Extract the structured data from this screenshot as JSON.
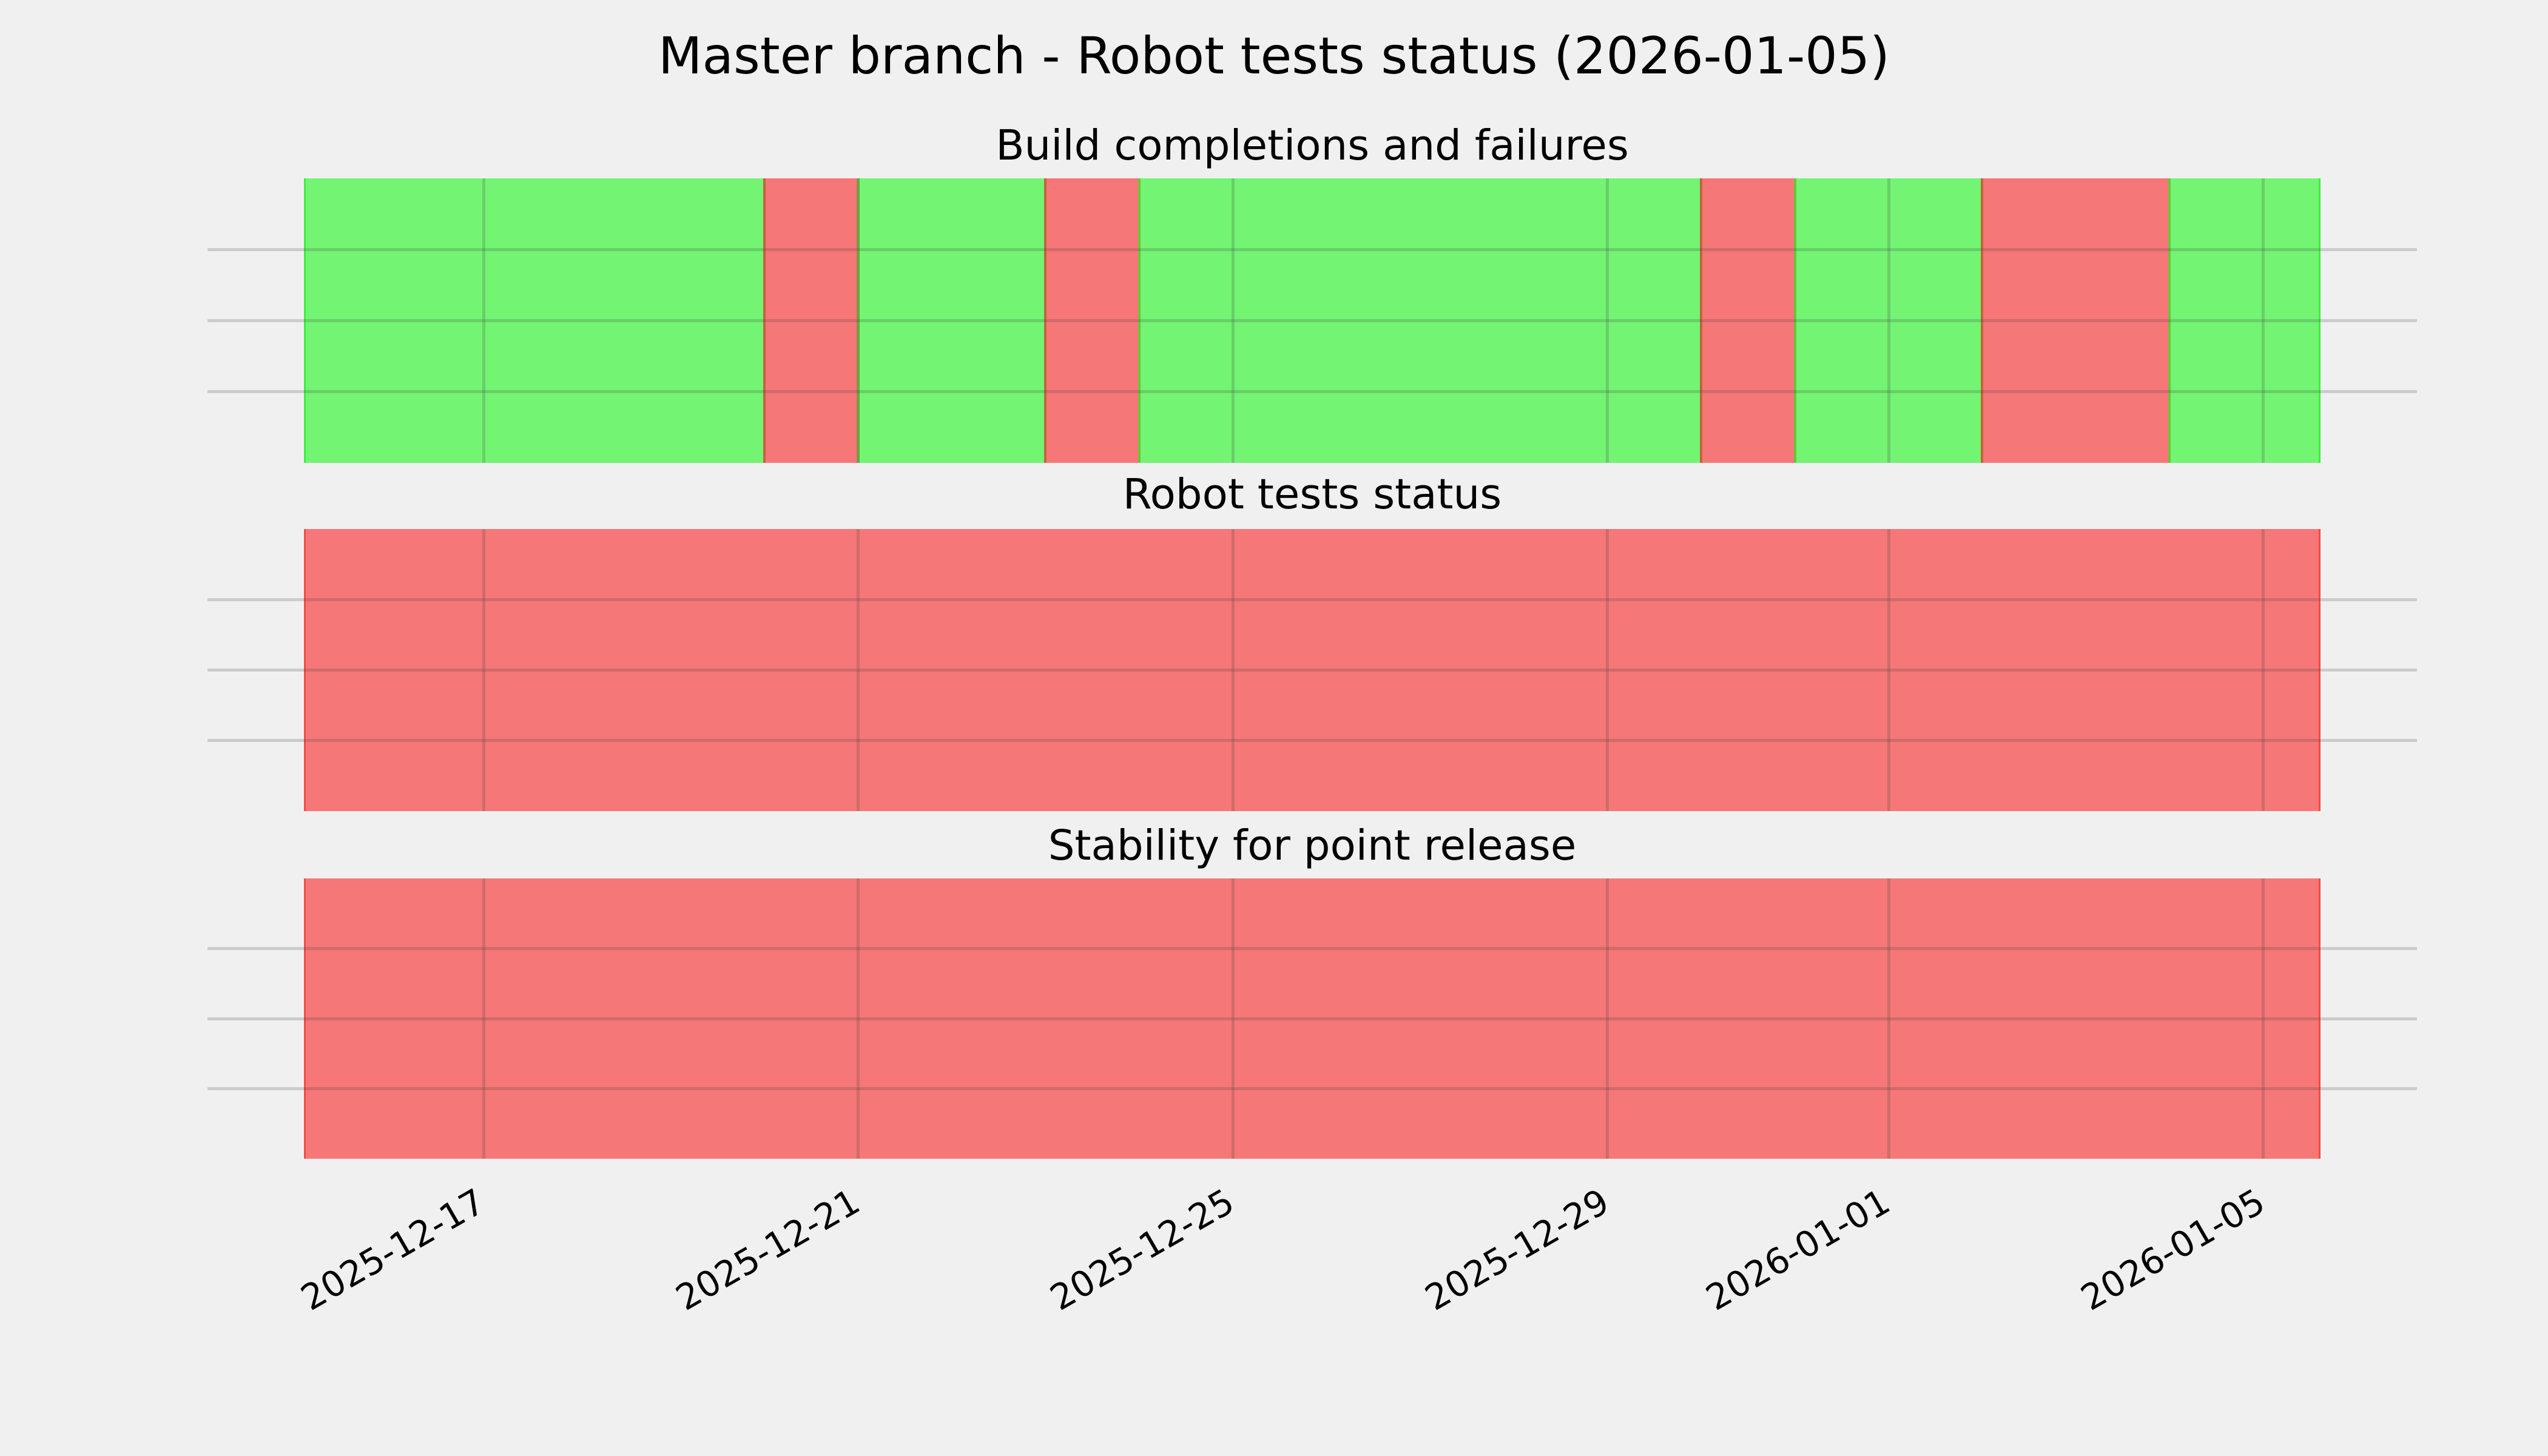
{
  "figure": {
    "title": "Master branch - Robot tests status (2026-01-05)",
    "background": "#f0f0f0"
  },
  "colors": {
    "pass": "#73f473",
    "fail": "#f57777",
    "gridline": "rgba(60,60,60,0.2)",
    "seam_pass_to_fail": "#c4643a",
    "seam_fail_to_pass": "#6ac43a",
    "edge_pass": "#3cf03c",
    "edge_fail": "#fa4a42",
    "text": "#000000"
  },
  "x_axis": {
    "epoch": "2025-12-15T00:00",
    "ticks": [
      "2025-12-17",
      "2025-12-21",
      "2025-12-25",
      "2025-12-29",
      "2026-01-01",
      "2026-01-05"
    ]
  },
  "chart_data": {
    "type": "timeline-status-bands",
    "title": "Master branch - Robot tests status (2026-01-05)",
    "x_range": {
      "from": "2025-12-15T02:00",
      "to": "2026-01-05T14:40"
    },
    "status_values": {
      "pass": "green",
      "fail": "red"
    },
    "grid": "on",
    "subplots": [
      {
        "title": "Build completions and failures",
        "segments": [
          {
            "status": "pass",
            "from": "2025-12-15T02:00",
            "to": "2025-12-20T00:00"
          },
          {
            "status": "fail",
            "from": "2025-12-20T00:00",
            "to": "2025-12-21T00:00"
          },
          {
            "status": "pass",
            "from": "2025-12-21T00:00",
            "to": "2025-12-23T00:00"
          },
          {
            "status": "fail",
            "from": "2025-12-23T00:00",
            "to": "2025-12-24T00:00"
          },
          {
            "status": "pass",
            "from": "2025-12-24T00:00",
            "to": "2025-12-30T00:00"
          },
          {
            "status": "fail",
            "from": "2025-12-30T00:00",
            "to": "2025-12-31T00:00"
          },
          {
            "status": "pass",
            "from": "2025-12-31T00:00",
            "to": "2026-01-02T00:00"
          },
          {
            "status": "fail",
            "from": "2026-01-02T00:00",
            "to": "2026-01-04T00:00"
          },
          {
            "status": "pass",
            "from": "2026-01-04T00:00",
            "to": "2026-01-05T14:40"
          }
        ]
      },
      {
        "title": "Robot tests status",
        "segments": [
          {
            "status": "fail",
            "from": "2025-12-15T02:00",
            "to": "2026-01-05T14:40"
          }
        ]
      },
      {
        "title": "Stability for point release",
        "segments": [
          {
            "status": "fail",
            "from": "2025-12-15T02:00",
            "to": "2026-01-05T14:40"
          }
        ]
      }
    ]
  }
}
